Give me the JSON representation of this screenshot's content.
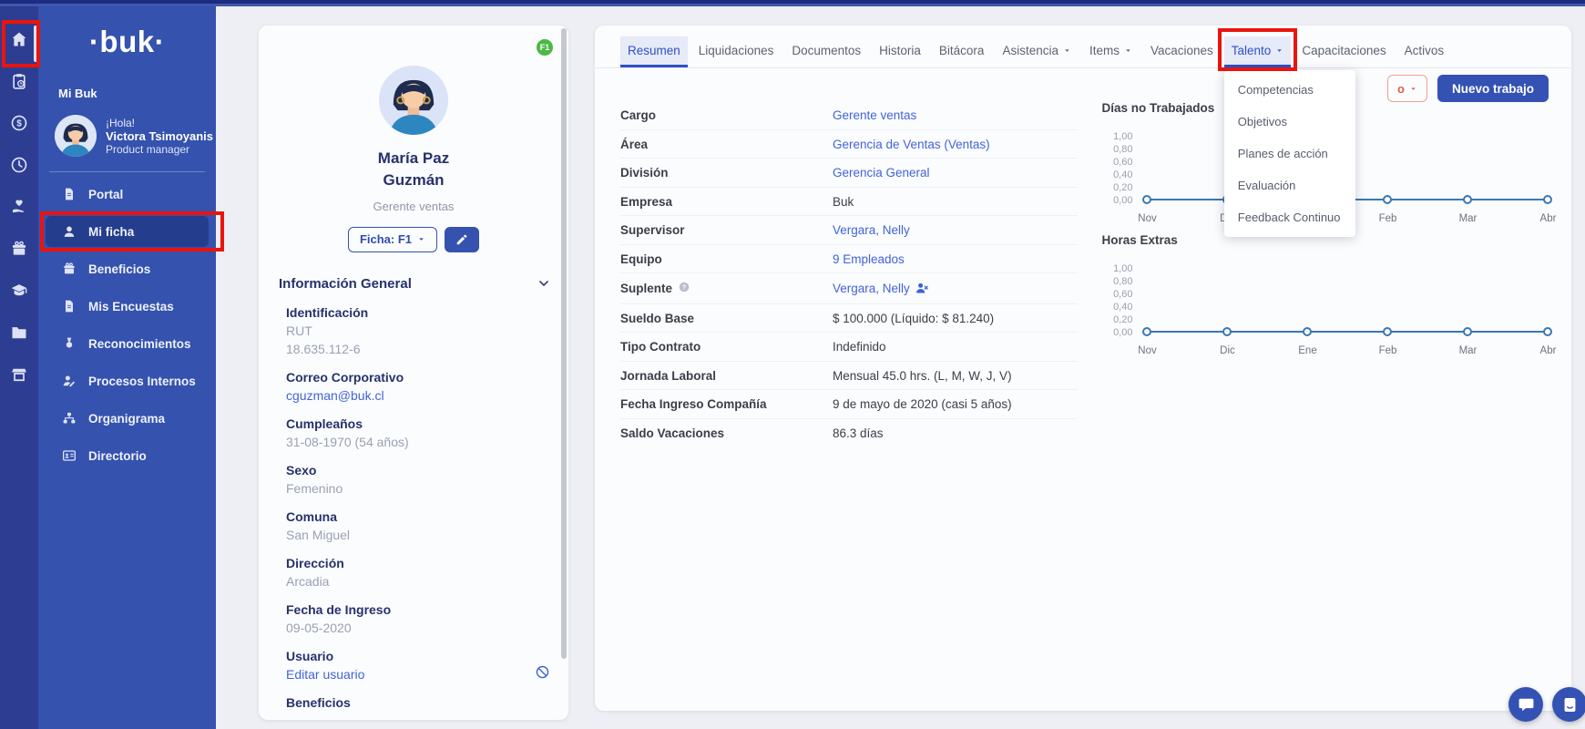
{
  "annotations": {
    "color": "#ea140d",
    "targets": [
      "home-icon",
      "sidebar-item-mi-ficha",
      "tab-talento"
    ]
  },
  "rail": {
    "icons": [
      {
        "name": "home",
        "icon": "home",
        "annotated": true
      },
      {
        "name": "tasks-clipboard",
        "icon": "clipboard"
      },
      {
        "name": "payments-dollar",
        "icon": "coin"
      },
      {
        "name": "time-clock",
        "icon": "clock"
      },
      {
        "name": "recognition-hand-heart",
        "icon": "handheart"
      },
      {
        "name": "benefits-gift",
        "icon": "gift"
      },
      {
        "name": "training-cap",
        "icon": "cap"
      },
      {
        "name": "documents-folder",
        "icon": "folder"
      },
      {
        "name": "kiosk",
        "icon": "kiosk"
      }
    ]
  },
  "sidebar": {
    "logo": "·buk·",
    "section_label": "Mi Buk",
    "user": {
      "greeting": "¡Hola!",
      "name": "Victora Tsimoyanis",
      "role": "Product manager"
    },
    "items": [
      {
        "key": "portal",
        "label": "Portal",
        "icon": "doc"
      },
      {
        "key": "mi-ficha",
        "label": "Mi ficha",
        "icon": "user",
        "selected": true,
        "annotated": true
      },
      {
        "key": "beneficios",
        "label": "Beneficios",
        "icon": "gift"
      },
      {
        "key": "mis-encuestas",
        "label": "Mis Encuestas",
        "icon": "doc"
      },
      {
        "key": "reconocimientos",
        "label": "Reconocimientos",
        "icon": "medal"
      },
      {
        "key": "procesos-internos",
        "label": "Procesos Internos",
        "icon": "personpen"
      },
      {
        "key": "organigrama",
        "label": "Organigrama",
        "icon": "orgchart"
      },
      {
        "key": "directorio",
        "label": "Directorio",
        "icon": "idcard"
      }
    ]
  },
  "profile_card": {
    "badge": "F1",
    "name_line1": "María Paz",
    "name_line2": "Guzmán",
    "role": "Gerente ventas",
    "ficha_button": "Ficha: F1",
    "section_title": "Información General",
    "fields": [
      {
        "key": "identificacion",
        "label": "Identificación",
        "lines": [
          "RUT",
          "18.635.112-6"
        ]
      },
      {
        "key": "correo-corporativo",
        "label": "Correo Corporativo",
        "value": "cguzman@buk.cl",
        "link": true
      },
      {
        "key": "cumpleanos",
        "label": "Cumpleaños",
        "value": "31-08-1970 (54 años)"
      },
      {
        "key": "sexo",
        "label": "Sexo",
        "value": "Femenino"
      },
      {
        "key": "comuna",
        "label": "Comuna",
        "value": "San Miguel"
      },
      {
        "key": "direccion",
        "label": "Dirección",
        "value": "Arcadia"
      },
      {
        "key": "fecha-de-ingreso",
        "label": "Fecha de Ingreso",
        "value": "09-05-2020"
      },
      {
        "key": "usuario",
        "label": "Usuario",
        "value": "Editar usuario",
        "link": true,
        "blocked_icon": true
      },
      {
        "key": "beneficios",
        "label": "Beneficios"
      }
    ]
  },
  "main": {
    "tabs": [
      {
        "key": "resumen",
        "label": "Resumen",
        "active": true
      },
      {
        "key": "liquidaciones",
        "label": "Liquidaciones"
      },
      {
        "key": "documentos",
        "label": "Documentos"
      },
      {
        "key": "historia",
        "label": "Historia"
      },
      {
        "key": "bitacora",
        "label": "Bitácora"
      },
      {
        "key": "asistencia",
        "label": "Asistencia",
        "caret": true
      },
      {
        "key": "items",
        "label": "Items",
        "caret": true
      },
      {
        "key": "vacaciones",
        "label": "Vacaciones"
      },
      {
        "key": "talento",
        "label": "Talento",
        "caret": true,
        "active": true,
        "annotated": true,
        "menu_open": true
      },
      {
        "key": "capacitaciones",
        "label": "Capacitaciones"
      },
      {
        "key": "activos",
        "label": "Activos"
      }
    ],
    "talento_menu": [
      "Competencias",
      "Objetivos",
      "Planes de acción",
      "Evaluación",
      "Feedback Continuo"
    ],
    "hidden_button_fragment": "o",
    "new_job_button": "Nuevo trabajo",
    "info_rows": [
      {
        "key": "cargo",
        "label": "Cargo",
        "value": "Gerente ventas",
        "link": true
      },
      {
        "key": "area",
        "label": "Área",
        "value": "Gerencia de Ventas (Ventas)",
        "link": true
      },
      {
        "key": "division",
        "label": "División",
        "value": "Gerencia General",
        "link": true
      },
      {
        "key": "empresa",
        "label": "Empresa",
        "value": "Buk"
      },
      {
        "key": "supervisor",
        "label": "Supervisor",
        "value": "Vergara, Nelly",
        "link": true
      },
      {
        "key": "equipo",
        "label": "Equipo",
        "value": "9 Empleados",
        "link": true
      },
      {
        "key": "suplente",
        "label": "Suplente",
        "value": "Vergara, Nelly",
        "link": true,
        "help_icon": true,
        "person_remove_icon": true
      },
      {
        "key": "sueldo-base",
        "label": "Sueldo Base",
        "value": "$ 100.000 (Líquido: $ 81.240)"
      },
      {
        "key": "tipo-contrato",
        "label": "Tipo Contrato",
        "value": "Indefinido"
      },
      {
        "key": "jornada-laboral",
        "label": "Jornada Laboral",
        "value": "Mensual 45.0 hrs. (L, M, W, J, V)"
      },
      {
        "key": "fecha-ingreso-compania",
        "label": "Fecha Ingreso Compañía",
        "value": "9 de mayo de 2020 (casi 5 años)"
      },
      {
        "key": "saldo-vacaciones",
        "label": "Saldo Vacaciones",
        "value": "86.3 días"
      }
    ]
  },
  "chart_data": [
    {
      "type": "line",
      "title": "Días no Trabajados",
      "categories": [
        "Nov",
        "Dic",
        "Ene",
        "Feb",
        "Mar",
        "Abr"
      ],
      "values": [
        0,
        0,
        0,
        0,
        0,
        0
      ],
      "ylim": [
        0,
        1
      ],
      "ytick_values": [
        1,
        0.8,
        0.6,
        0.4,
        0.2,
        0
      ],
      "ytick_labels": [
        "1,00",
        "0,80",
        "0,60",
        "0,40",
        "0,20",
        "0,00"
      ],
      "line_color": "#3878b4",
      "grid": false,
      "legend": false
    },
    {
      "type": "line",
      "title": "Horas Extras",
      "categories": [
        "Nov",
        "Dic",
        "Ene",
        "Feb",
        "Mar",
        "Abr"
      ],
      "values": [
        0,
        0,
        0,
        0,
        0,
        0
      ],
      "ylim": [
        0,
        1
      ],
      "ytick_values": [
        1,
        0.8,
        0.6,
        0.4,
        0.2,
        0
      ],
      "ytick_labels": [
        "1,00",
        "0,80",
        "0,60",
        "0,40",
        "0,20",
        "0,00"
      ],
      "line_color": "#3878b4",
      "grid": false,
      "legend": false
    }
  ],
  "fab": [
    {
      "key": "chat",
      "icon": "chat"
    },
    {
      "key": "help",
      "icon": "book"
    }
  ]
}
